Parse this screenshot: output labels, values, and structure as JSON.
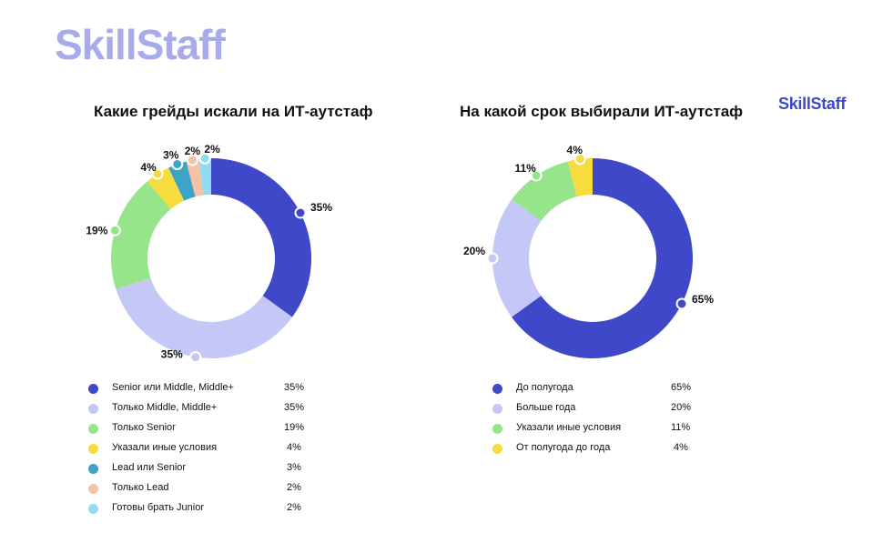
{
  "brand": {
    "logo_text": "SkillStaff",
    "logo_small_text": "SkillStaff",
    "colors": {
      "logo_light": "#a8abea",
      "logo_dark": "#3e48c8"
    }
  },
  "chart_data": [
    {
      "type": "pie",
      "title": "Какие грейды искали на ИТ-аутстаф",
      "donut": true,
      "slices": [
        {
          "label": "Senior или Middle, Middle+",
          "value": 35,
          "display": "35%",
          "color": "#3f48c9"
        },
        {
          "label": "Только Middle, Middle+",
          "value": 35,
          "display": "35%",
          "color": "#c5c8f7"
        },
        {
          "label": "Только Senior",
          "value": 19,
          "display": "19%",
          "color": "#96e58b"
        },
        {
          "label": "Указали иные условия",
          "value": 4,
          "display": "4%",
          "color": "#f6dc3c"
        },
        {
          "label": "Lead или Senior",
          "value": 3,
          "display": "3%",
          "color": "#3fa3c6"
        },
        {
          "label": "Только Lead",
          "value": 2,
          "display": "2%",
          "color": "#f7c1a6"
        },
        {
          "label": "Готовы брать Junior",
          "value": 2,
          "display": "2%",
          "color": "#92dcf2"
        }
      ],
      "legend_placement": "bottom"
    },
    {
      "type": "pie",
      "title": "На какой срок выбирали ИТ-аутстаф",
      "donut": true,
      "slices": [
        {
          "label": "До полугода",
          "value": 65,
          "display": "65%",
          "color": "#3f48c9"
        },
        {
          "label": "Больше года",
          "value": 20,
          "display": "20%",
          "color": "#c5c8f7"
        },
        {
          "label": "Указали иные условия",
          "value": 11,
          "display": "11%",
          "color": "#96e58b"
        },
        {
          "label": "От полугода до года",
          "value": 4,
          "display": "4%",
          "color": "#f6dc3c"
        }
      ],
      "legend_placement": "bottom"
    }
  ]
}
